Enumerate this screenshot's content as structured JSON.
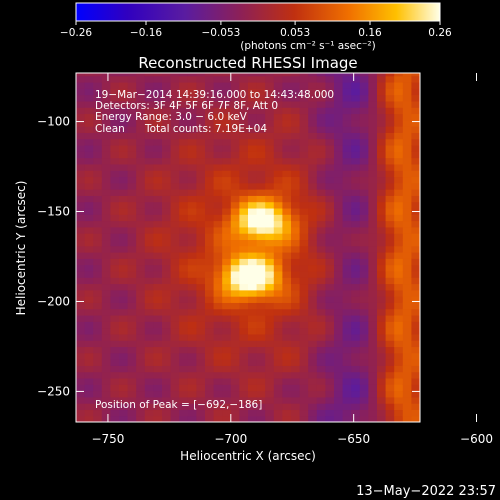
{
  "chart_data": {
    "type": "heatmap",
    "title": "Reconstructed RHESSI Image",
    "xlabel": "Heliocentric X (arcsec)",
    "ylabel": "Heliocentric Y (arcsec)",
    "xlim": [
      -763,
      -623
    ],
    "ylim": [
      -267,
      -73
    ],
    "x_ticks": [
      -750,
      -700,
      -650,
      -600
    ],
    "y_ticks": [
      -100,
      -150,
      -200,
      -250
    ],
    "x_tick_labels": [
      "−750",
      "−700",
      "−650",
      "−600"
    ],
    "y_tick_labels": [
      "−100",
      "−150",
      "−200",
      "−250"
    ],
    "colorbar": {
      "label": "(photons cm⁻² s⁻¹ asec⁻²)",
      "range": [
        -0.26,
        0.26
      ],
      "ticks": [
        -0.26,
        -0.16,
        -0.053,
        0.053,
        0.16,
        0.26
      ],
      "tick_labels": [
        "−0.26",
        "−0.16",
        "−0.053",
        "0.053",
        "0.16",
        "0.26"
      ],
      "colormap_stops": [
        "#0000ff",
        "#3000c0",
        "#5a1ca0",
        "#8c2058",
        "#c03010",
        "#f07000",
        "#ffc000",
        "#ffffe8"
      ]
    },
    "sources": [
      {
        "x": -692,
        "y": -186,
        "peak": 0.26,
        "sigma_arcsec": 8
      },
      {
        "x": -687,
        "y": -155,
        "peak": 0.22,
        "sigma_arcsec": 8
      }
    ],
    "background_level": -0.03
  },
  "annotations": {
    "line1": "19−Mar−2014 14:39:16.000 to 14:43:48.000",
    "line2": "Detectors: 3F 4F 5F 6F 7F 8F, Att 0",
    "line3": "Energy Range: 3.0 − 6.0 keV",
    "line4_label": "Clean",
    "line4_counts": "Total counts: 7.19E+04",
    "peak_position": "Position of Peak = [−692,−186]"
  },
  "footer": {
    "timestamp": "13−May−2022 23:57"
  }
}
